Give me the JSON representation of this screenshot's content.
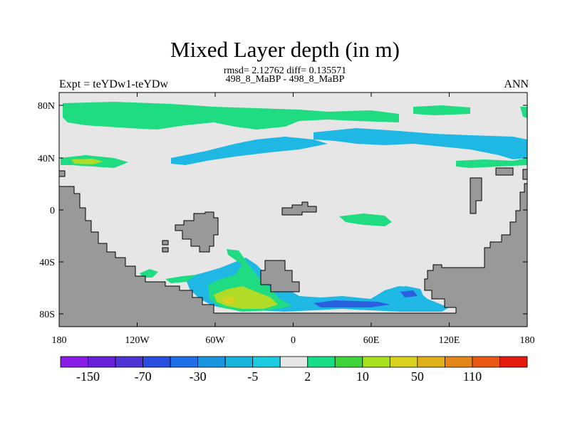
{
  "header": {
    "title": "Mixed Layer depth (in m)",
    "stats": "rmsd= 2.12762 diff= 0.135571",
    "case": "498_8_MaBP - 498_8_MaBP",
    "experiment": "Expt = teYDw1-teYDw",
    "period": "ANN"
  },
  "axes": {
    "x_ticks": [
      "180",
      "120W",
      "60W",
      "0",
      "60E",
      "120E",
      "180"
    ],
    "y_ticks": [
      "80N",
      "40N",
      "0",
      "40S",
      "80S"
    ]
  },
  "colorbar": {
    "labels": [
      "-150",
      "-70",
      "-30",
      "-5",
      "2",
      "10",
      "50",
      "110"
    ],
    "colors": [
      "#8a1ee6",
      "#6a22d8",
      "#4f35d6",
      "#2a4ee0",
      "#1f6fe8",
      "#1a96e0",
      "#18b4dc",
      "#1ccbe0",
      "#e6e6e6",
      "#17dd87",
      "#3ed43a",
      "#a8e21e",
      "#d8d21e",
      "#e0b01a",
      "#e48618",
      "#e85a14",
      "#e41c10"
    ]
  },
  "colors": {
    "land": "#999999",
    "ocean": "#e6e6e6",
    "green": "#1fdc82",
    "cyan": "#1fb8e4",
    "blue": "#2a60e0",
    "yellow": "#b0dc28"
  }
}
